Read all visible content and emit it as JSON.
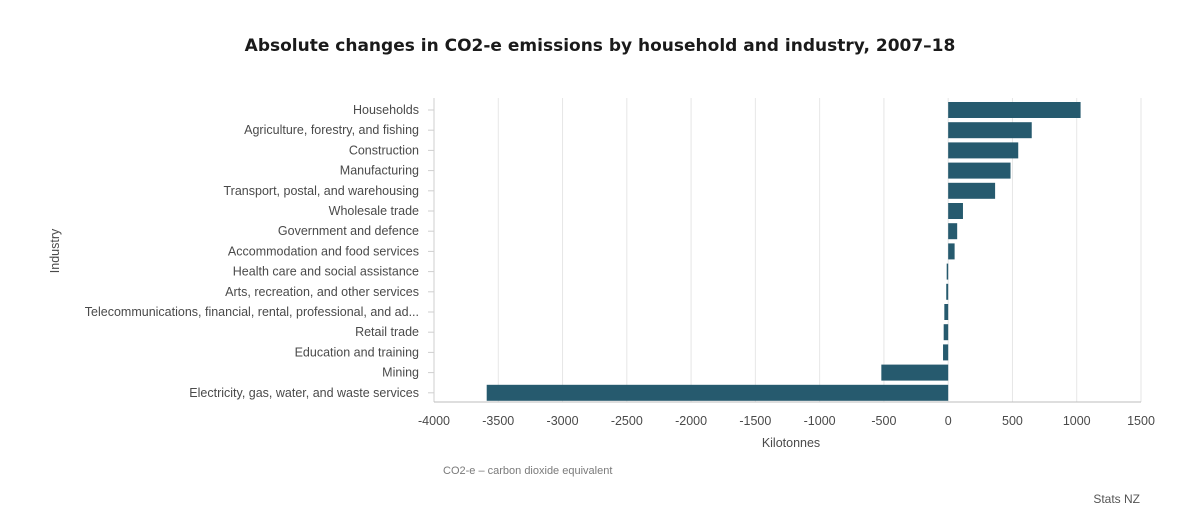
{
  "chart_data": {
    "type": "bar",
    "orientation": "horizontal",
    "title": "Absolute changes in CO2-e emissions by household and industry, 2007–18",
    "xlabel": "Kilotonnes",
    "ylabel": "Industry",
    "xlim": [
      -4000,
      1500
    ],
    "xticks": [
      -4000,
      -3500,
      -3000,
      -2500,
      -2000,
      -1500,
      -1000,
      -500,
      0,
      500,
      1000,
      1500
    ],
    "grid": true,
    "bar_color": "#265a6e",
    "categories": [
      "Households",
      "Agriculture, forestry, and fishing",
      "Construction",
      "Manufacturing",
      "Transport, postal, and warehousing",
      "Wholesale trade",
      "Government and defence",
      "Accommodation and food services",
      "Health care and social assistance",
      "Arts, recreation, and other services",
      "Telecommunications, financial, rental, professional, and ad...",
      "Retail trade",
      "Education and training",
      "Mining",
      "Electricity, gas, water, and waste services"
    ],
    "values": [
      1030,
      650,
      545,
      485,
      365,
      115,
      70,
      50,
      -8,
      -15,
      -30,
      -35,
      -40,
      -520,
      -3590
    ]
  },
  "footnote": "CO2-e – carbon dioxide equivalent",
  "source": "Stats NZ"
}
